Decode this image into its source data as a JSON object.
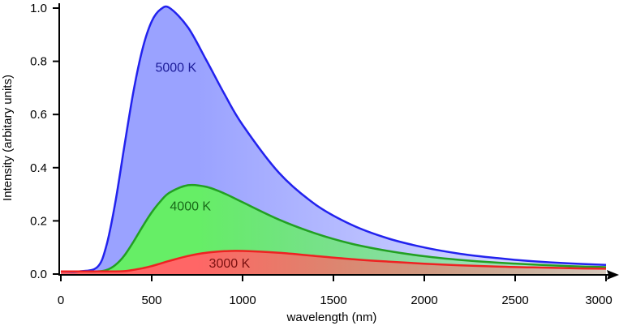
{
  "chart_data": {
    "type": "area",
    "title": "",
    "xlabel": "wavelength (nm)",
    "ylabel": "Intensity (arbitary units)",
    "xlim": [
      0,
      3000
    ],
    "ylim": [
      0,
      1.0
    ],
    "grid": false,
    "legend": "none",
    "xticks": [
      "0",
      "500",
      "1000",
      "1500",
      "2000",
      "2500",
      "3000"
    ],
    "xtick_values": [
      0,
      500,
      1000,
      1500,
      2000,
      2500,
      3000
    ],
    "yticks": [
      "0.0",
      "0.2",
      "0.4",
      "0.6",
      "0.8",
      "1.0"
    ],
    "ytick_values": [
      0,
      0.2,
      0.4,
      0.6,
      0.8,
      1.0
    ],
    "x": [
      0,
      100,
      200,
      250,
      300,
      350,
      400,
      450,
      500,
      550,
      600,
      700,
      800,
      900,
      1000,
      1200,
      1400,
      1600,
      1800,
      2000,
      2200,
      2400,
      2600,
      2800,
      3000
    ],
    "series": [
      {
        "name": "5000 K",
        "label_x": 520,
        "label_y": 0.76,
        "line_color": "#2222ee",
        "fill_color": "#9aa2ff",
        "label_color": "#1c1c99",
        "values": [
          0.01,
          0.01,
          0.026,
          0.105,
          0.27,
          0.483,
          0.688,
          0.848,
          0.95,
          0.996,
          1.0,
          0.927,
          0.805,
          0.677,
          0.561,
          0.381,
          0.262,
          0.185,
          0.134,
          0.1,
          0.076,
          0.06,
          0.048,
          0.04,
          0.034
        ]
      },
      {
        "name": "4000 K",
        "label_x": 600,
        "label_y": 0.24,
        "line_color": "#22a022",
        "fill_color": "#66ee66",
        "label_color": "#186a18",
        "values": [
          0.01,
          0.01,
          0.01,
          0.015,
          0.034,
          0.07,
          0.122,
          0.179,
          0.232,
          0.275,
          0.307,
          0.334,
          0.328,
          0.303,
          0.27,
          0.205,
          0.153,
          0.114,
          0.087,
          0.067,
          0.053,
          0.043,
          0.036,
          0.03,
          0.026
        ]
      },
      {
        "name": "3000 K",
        "label_x": 815,
        "label_y": 0.025,
        "line_color": "#ee2222",
        "fill_color": "#ff6666",
        "label_color": "#7a1010",
        "values": [
          0.01,
          0.01,
          0.01,
          0.01,
          0.01,
          0.011,
          0.016,
          0.022,
          0.03,
          0.04,
          0.05,
          0.068,
          0.08,
          0.086,
          0.087,
          0.08,
          0.068,
          0.056,
          0.047,
          0.039,
          0.033,
          0.028,
          0.025,
          0.022,
          0.02
        ]
      }
    ]
  }
}
